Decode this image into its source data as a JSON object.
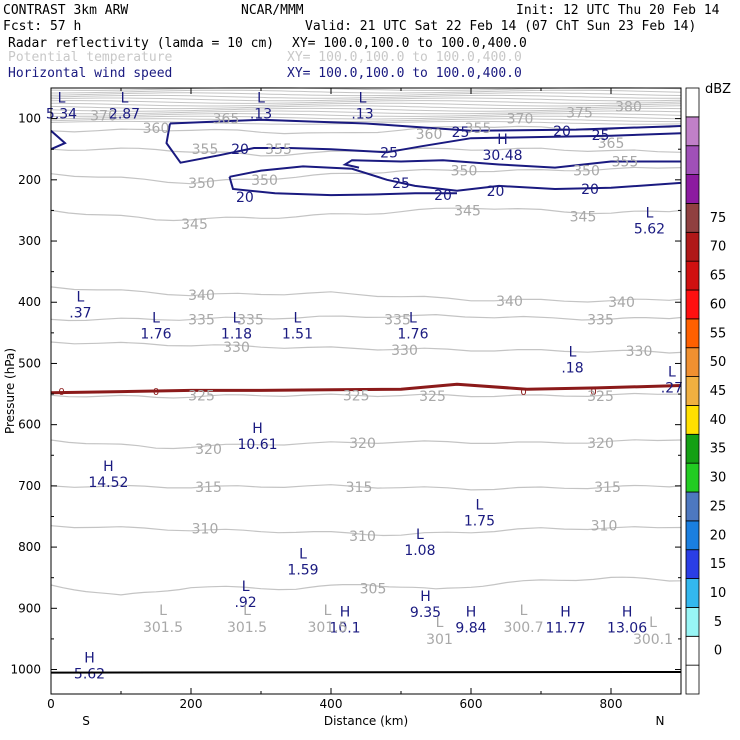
{
  "header": {
    "model": "CONTRAST  3km ARW",
    "center": "NCAR/MMM",
    "init": "Init: 12 UTC Thu 20 Feb 14",
    "fcst": "Fcst:   57 h",
    "valid": "Valid: 21 UTC Sat 22 Feb 14 (07 ChT Sun 23 Feb 14)",
    "fields": [
      {
        "name": "Radar reflectivity (lamda = 10 cm)",
        "xy": "XY= 100.0,100.0 to 100.0,400.0",
        "color": "#000000"
      },
      {
        "name": "Potential temperature",
        "xy": "XY= 100.0,100.0 to 100.0,400.0",
        "color": "#c8c8c8"
      },
      {
        "name": "Horizontal wind speed",
        "xy": "XY= 100.0,100.0 to 100.0,400.0",
        "color": "#1a1a80"
      }
    ]
  },
  "chart_data": {
    "type": "contour",
    "xlabel": "Distance (km)",
    "ylabel": "Pressure (hPa)",
    "xlim": [
      0,
      900
    ],
    "ylim": [
      1040,
      50
    ],
    "x_ticks": [
      0,
      200,
      400,
      600,
      800
    ],
    "y_ticks": [
      100,
      200,
      300,
      400,
      500,
      600,
      700,
      800,
      900,
      1000
    ],
    "x_end_labels": {
      "left": "S",
      "right": "N"
    },
    "theta_labels": [
      {
        "text": "370",
        "x": 75,
        "p": 95
      },
      {
        "text": "375",
        "x": 755,
        "p": 90
      },
      {
        "text": "380",
        "x": 825,
        "p": 80
      },
      {
        "text": "360",
        "x": 150,
        "p": 115
      },
      {
        "text": "365",
        "x": 250,
        "p": 100
      },
      {
        "text": "360",
        "x": 540,
        "p": 125
      },
      {
        "text": "355",
        "x": 610,
        "p": 115
      },
      {
        "text": "370",
        "x": 670,
        "p": 100
      },
      {
        "text": "365",
        "x": 800,
        "p": 140
      },
      {
        "text": "355",
        "x": 220,
        "p": 150
      },
      {
        "text": "355",
        "x": 325,
        "p": 150
      },
      {
        "text": "355",
        "x": 820,
        "p": 170
      },
      {
        "text": "350",
        "x": 215,
        "p": 205
      },
      {
        "text": "350",
        "x": 305,
        "p": 200
      },
      {
        "text": "350",
        "x": 590,
        "p": 185
      },
      {
        "text": "350",
        "x": 765,
        "p": 185
      },
      {
        "text": "345",
        "x": 205,
        "p": 272
      },
      {
        "text": "345",
        "x": 595,
        "p": 250
      },
      {
        "text": "345",
        "x": 760,
        "p": 260
      },
      {
        "text": "340",
        "x": 215,
        "p": 388
      },
      {
        "text": "340",
        "x": 655,
        "p": 398
      },
      {
        "text": "340",
        "x": 815,
        "p": 400
      },
      {
        "text": "335",
        "x": 215,
        "p": 428
      },
      {
        "text": "335",
        "x": 285,
        "p": 428
      },
      {
        "text": "335",
        "x": 495,
        "p": 428
      },
      {
        "text": "335",
        "x": 785,
        "p": 428
      },
      {
        "text": "330",
        "x": 265,
        "p": 473
      },
      {
        "text": "330",
        "x": 505,
        "p": 478
      },
      {
        "text": "330",
        "x": 840,
        "p": 480
      },
      {
        "text": "325",
        "x": 215,
        "p": 552
      },
      {
        "text": "325",
        "x": 436,
        "p": 552
      },
      {
        "text": "325",
        "x": 545,
        "p": 553
      },
      {
        "text": "325",
        "x": 785,
        "p": 553
      },
      {
        "text": "320",
        "x": 225,
        "p": 640
      },
      {
        "text": "320",
        "x": 445,
        "p": 630
      },
      {
        "text": "320",
        "x": 785,
        "p": 630
      },
      {
        "text": "315",
        "x": 225,
        "p": 702
      },
      {
        "text": "315",
        "x": 440,
        "p": 702
      },
      {
        "text": "315",
        "x": 795,
        "p": 702
      },
      {
        "text": "310",
        "x": 220,
        "p": 770
      },
      {
        "text": "310",
        "x": 445,
        "p": 782
      },
      {
        "text": "310",
        "x": 790,
        "p": 765
      },
      {
        "text": "305",
        "x": 460,
        "p": 868
      }
    ],
    "wind_labels": [
      {
        "text": "25",
        "x": 585,
        "p": 122
      },
      {
        "text": "20",
        "x": 730,
        "p": 120
      },
      {
        "text": "25",
        "x": 785,
        "p": 127
      },
      {
        "text": "20",
        "x": 270,
        "p": 150
      },
      {
        "text": "25",
        "x": 483,
        "p": 155
      },
      {
        "text": "25",
        "x": 500,
        "p": 205
      },
      {
        "text": "20",
        "x": 560,
        "p": 225
      },
      {
        "text": "20",
        "x": 635,
        "p": 218
      },
      {
        "text": "20",
        "x": 770,
        "p": 215
      },
      {
        "text": "20",
        "x": 277,
        "p": 228
      }
    ],
    "freezing_label": "0",
    "extrema_navy": [
      {
        "type": "H",
        "value": "30.48",
        "x": 645,
        "p": 148
      },
      {
        "type": "L",
        "value": "5.34",
        "x": 15,
        "p": 80
      },
      {
        "type": "L",
        "value": "2.87",
        "x": 105,
        "p": 80
      },
      {
        "type": "L",
        "value": ".13",
        "x": 300,
        "p": 80
      },
      {
        "type": "L",
        "value": ".13",
        "x": 445,
        "p": 80
      },
      {
        "type": "L",
        "value": "5.62",
        "x": 855,
        "p": 268
      },
      {
        "type": "L",
        "value": ".37",
        "x": 42,
        "p": 405
      },
      {
        "type": "L",
        "value": "1.76",
        "x": 150,
        "p": 440
      },
      {
        "type": "L",
        "value": "1.18",
        "x": 265,
        "p": 440
      },
      {
        "type": "L",
        "value": "1.51",
        "x": 352,
        "p": 440
      },
      {
        "type": "L",
        "value": "1.76",
        "x": 517,
        "p": 440
      },
      {
        "type": "L",
        "value": ".18",
        "x": 745,
        "p": 495
      },
      {
        "type": "L",
        "value": ".27",
        "x": 887,
        "p": 528
      },
      {
        "type": "H",
        "value": "10.61",
        "x": 295,
        "p": 620
      },
      {
        "type": "H",
        "value": "14.52",
        "x": 82,
        "p": 682
      },
      {
        "type": "L",
        "value": "1.75",
        "x": 612,
        "p": 745
      },
      {
        "type": "L",
        "value": "1.08",
        "x": 527,
        "p": 793
      },
      {
        "type": "L",
        "value": "1.59",
        "x": 360,
        "p": 825
      },
      {
        "type": "L",
        "value": ".92",
        "x": 278,
        "p": 878
      },
      {
        "type": "H",
        "value": "9.35",
        "x": 535,
        "p": 895
      },
      {
        "type": "H",
        "value": "10.1",
        "x": 420,
        "p": 920
      },
      {
        "type": "H",
        "value": "9.84",
        "x": 600,
        "p": 920
      },
      {
        "type": "H",
        "value": "11.77",
        "x": 735,
        "p": 920
      },
      {
        "type": "H",
        "value": "13.06",
        "x": 823,
        "p": 920
      },
      {
        "type": "H",
        "value": "5.62",
        "x": 55,
        "p": 995
      }
    ],
    "extrema_gray": [
      {
        "type": "L",
        "value": "301.5",
        "x": 160,
        "p": 940
      },
      {
        "type": "L",
        "value": "301.5",
        "x": 280,
        "p": 940
      },
      {
        "type": "L",
        "value": "301.5",
        "x": 395,
        "p": 940
      },
      {
        "type": "L",
        "value": "301",
        "x": 555,
        "p": 960
      },
      {
        "type": "L",
        "value": "300.7",
        "x": 675,
        "p": 940
      },
      {
        "type": "L",
        "value": "300.1",
        "x": 860,
        "p": 960
      }
    ],
    "colorbar": {
      "title": "dBZ",
      "levels": [
        "0",
        "5",
        "10",
        "15",
        "20",
        "25",
        "30",
        "35",
        "40",
        "45",
        "50",
        "55",
        "60",
        "65",
        "70",
        "75"
      ],
      "colors": [
        "#ffffff",
        "#ffffff",
        "#98f5f5",
        "#33b8ee",
        "#2a3ee6",
        "#1a7fe0",
        "#4d78c0",
        "#22cc22",
        "#14a014",
        "#ffe000",
        "#f0b040",
        "#f09030",
        "#ff6000",
        "#ff1010",
        "#d01010",
        "#b01818",
        "#904040",
        "#8c1aa0",
        "#a050b8",
        "#c080c8",
        "#ffffff"
      ]
    }
  }
}
